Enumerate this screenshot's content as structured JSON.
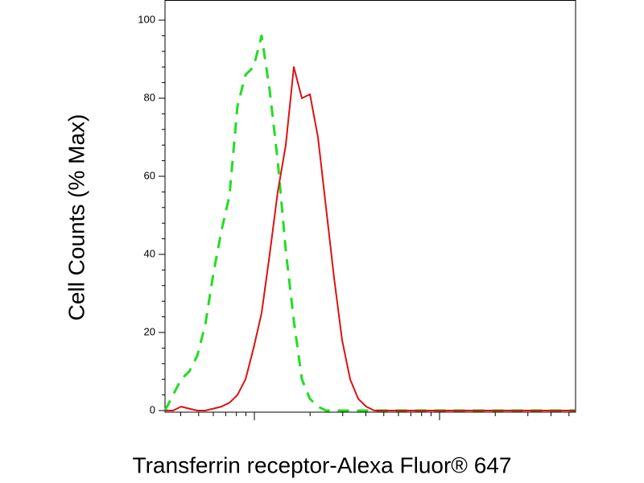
{
  "chart_data": {
    "type": "line",
    "x_label": "Transferrin receptor-Alexa Fluor® 647",
    "y_label": "Cell Counts (% Max)",
    "categories": [
      null,
      null,
      null,
      null,
      null,
      null,
      null,
      null,
      null,
      null,
      null,
      null,
      null,
      null,
      null,
      null,
      null,
      null,
      null,
      null,
      null,
      null,
      null,
      null,
      null,
      null,
      null,
      null,
      null,
      null,
      null,
      null,
      null,
      null,
      null,
      null,
      null,
      null,
      null,
      null,
      null,
      null,
      null,
      null,
      null,
      null,
      null,
      null,
      null,
      null,
      null,
      null
    ],
    "series": [
      {
        "color": "#22dd22",
        "dashed": true,
        "values": [
          0,
          4,
          8,
          10,
          14,
          22,
          35,
          46,
          55,
          78,
          86,
          88,
          96,
          82,
          64,
          41,
          23,
          8,
          3,
          1,
          0,
          0,
          0,
          0,
          0,
          0,
          0,
          0,
          0,
          0,
          0,
          0,
          0,
          0,
          0,
          0,
          0,
          0,
          0,
          0,
          0,
          0,
          0,
          0,
          0,
          0,
          0,
          0,
          0,
          0,
          0,
          0
        ]
      },
      {
        "color": "#dd1111",
        "dashed": false,
        "values": [
          0,
          0,
          1,
          0.5,
          0,
          0,
          0.5,
          1,
          2,
          4,
          8,
          16,
          25,
          40,
          56,
          68,
          88,
          80,
          81,
          70,
          52,
          34,
          18,
          8,
          3,
          1,
          0,
          0,
          0,
          0,
          0,
          0,
          0,
          0,
          0,
          0,
          0,
          0,
          0,
          0,
          0,
          0,
          0,
          0,
          0,
          0,
          0,
          0,
          0,
          0,
          0,
          0
        ]
      }
    ],
    "ylim": [
      0,
      105
    ],
    "yticks": [
      0,
      20,
      40,
      60,
      80,
      100
    ],
    "x_log_scale": true
  }
}
